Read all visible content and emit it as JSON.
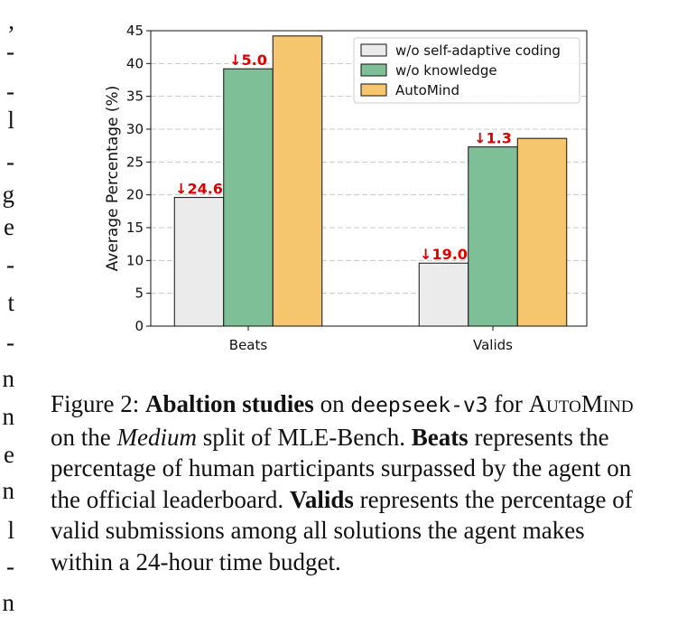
{
  "margin_text": [
    ",",
    "-",
    "-",
    "l",
    "-",
    "g",
    "e",
    "-",
    "t",
    "-",
    "n",
    "n",
    "e",
    "n",
    "l",
    "-",
    "n"
  ],
  "chart_data": {
    "type": "bar",
    "categories": [
      "Beats",
      "Valids"
    ],
    "series": [
      {
        "name": "w/o self-adaptive coding",
        "values": [
          19.6,
          9.6
        ],
        "color": "#ebebeb"
      },
      {
        "name": "w/o knowledge",
        "values": [
          39.2,
          27.3
        ],
        "color": "#7fbf98"
      },
      {
        "name": "AutoMind",
        "values": [
          44.2,
          28.6
        ],
        "color": "#f6c66e"
      }
    ],
    "annotations": [
      {
        "text": "↓24.6",
        "category": "Beats",
        "series": "w/o self-adaptive coding"
      },
      {
        "text": "↓5.0",
        "category": "Beats",
        "series": "w/o knowledge"
      },
      {
        "text": "↓19.0",
        "category": "Valids",
        "series": "w/o self-adaptive coding"
      },
      {
        "text": "↓1.3",
        "category": "Valids",
        "series": "w/o knowledge"
      }
    ],
    "ylabel": "Average Percentage (%)",
    "xlabel": "",
    "ylim": [
      0,
      45
    ],
    "yticks": [
      0,
      5,
      10,
      15,
      20,
      25,
      30,
      35,
      40,
      45
    ],
    "grid": "horizontal dashed",
    "legend_position": "top-right",
    "annotation_color": "#e00000"
  },
  "caption": {
    "prefix": "Figure 2: ",
    "bold1": "Abaltion studies",
    "t1": " on ",
    "mono": "deepseek-v3",
    "t2": " for ",
    "sc": "AutoMind",
    "t3": " on the ",
    "italic": "Medium",
    "t4": " split of MLE-Bench. ",
    "bold2": "Beats",
    "t5": " represents the percentage of human participants surpassed by the agent on the official leaderboard. ",
    "bold3": "Valids",
    "t6": " represents the percentage of valid submissions among all solutions the agent makes within a 24-hour time budget."
  }
}
